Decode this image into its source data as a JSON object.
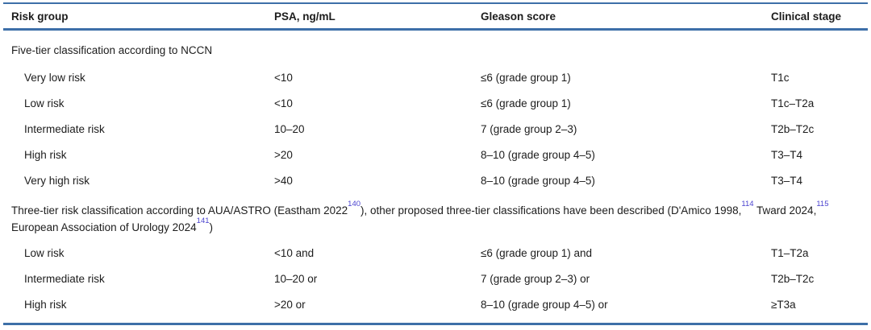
{
  "colors": {
    "rule_blue": "#3d6fa8",
    "text": "#1c1c1c",
    "citation_link": "#4b43cf",
    "background": "#ffffff"
  },
  "table": {
    "columns": [
      "Risk group",
      "PSA, ng/mL",
      "Gleason score",
      "Clinical stage"
    ],
    "sections": [
      {
        "header_segments": [
          {
            "text": "Five-tier classification according to NCCN"
          }
        ],
        "rows": [
          {
            "risk_group": "Very low risk",
            "psa": "<10",
            "gleason": "≤6 (grade group 1)",
            "clinical_stage": "T1c"
          },
          {
            "risk_group": "Low risk",
            "psa": "<10",
            "gleason": "≤6 (grade group 1)",
            "clinical_stage": "T1c–T2a"
          },
          {
            "risk_group": "Intermediate risk",
            "psa": "10–20",
            "gleason": "7 (grade group 2–3)",
            "clinical_stage": "T2b–T2c"
          },
          {
            "risk_group": "High risk",
            "psa": ">20",
            "gleason": "8–10 (grade group 4–5)",
            "clinical_stage": "T3–T4"
          },
          {
            "risk_group": "Very high risk",
            "psa": ">40",
            "gleason": "8–10 (grade group 4–5)",
            "clinical_stage": "T3–T4"
          }
        ]
      },
      {
        "header_segments": [
          {
            "text": "Three-tier risk classification according to AUA/ASTRO (Eastham 2022"
          },
          {
            "sup": "140"
          },
          {
            "text": "), other proposed three-tier classifications have been described (D'Amico 1998,"
          },
          {
            "sup": "114"
          },
          {
            "text": " Tward 2024,"
          },
          {
            "sup": "115"
          },
          {
            "text": " European Association of Urology 2024"
          },
          {
            "sup": "141"
          },
          {
            "text": ")"
          }
        ],
        "rows": [
          {
            "risk_group": "Low risk",
            "psa": "<10 and",
            "gleason": "≤6 (grade group 1) and",
            "clinical_stage": "T1–T2a"
          },
          {
            "risk_group": "Intermediate risk",
            "psa": "10–20 or",
            "gleason": "7 (grade group 2–3) or",
            "clinical_stage": "T2b–T2c"
          },
          {
            "risk_group": "High risk",
            "psa": ">20 or",
            "gleason": "8–10 (grade group 4–5) or",
            "clinical_stage": "≥T3a"
          }
        ]
      }
    ]
  }
}
